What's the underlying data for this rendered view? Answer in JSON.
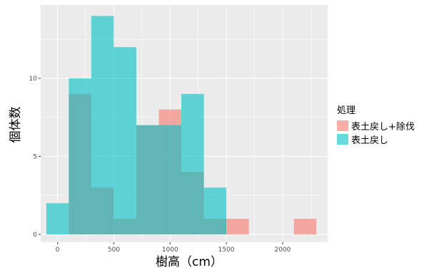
{
  "chart_data": {
    "type": "histogram",
    "xlabel": "樹高（cm）",
    "ylabel": "個体数",
    "x_ticks": [
      "0",
      "500",
      "1000",
      "1500",
      "2000"
    ],
    "y_ticks": [
      "0",
      "5",
      "10"
    ],
    "xlim": [
      -150,
      2400
    ],
    "ylim": [
      -0.5,
      14.7
    ],
    "bin_width": 200,
    "bin_starts": [
      -100,
      100,
      300,
      500,
      700,
      900,
      1100,
      1300,
      1500,
      1700,
      1900,
      2100
    ],
    "series": [
      {
        "name": "表土戻し+除伐",
        "color": "#F8766D",
        "values": [
          0,
          9,
          3,
          1,
          7,
          8,
          4,
          1,
          1,
          0,
          0,
          1
        ]
      },
      {
        "name": "表土戻し",
        "color": "#00BFC4",
        "values": [
          2,
          10,
          14,
          12,
          7,
          7,
          9,
          3,
          0,
          0,
          0,
          0
        ]
      }
    ],
    "opacity": 0.6,
    "grid": true,
    "legend": {
      "title": "処理",
      "position": "right"
    }
  }
}
